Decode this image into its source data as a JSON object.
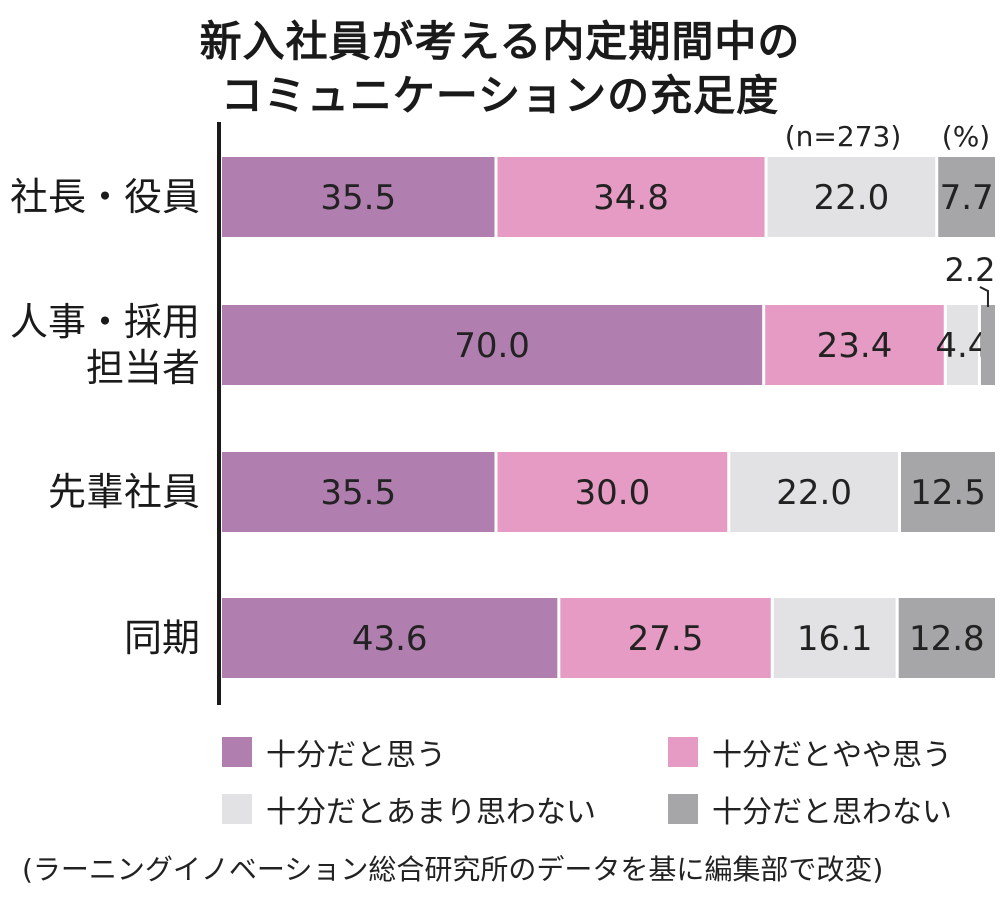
{
  "title_lines": [
    "新入社員が考える内定期間中の",
    "コミュニケーションの充足度"
  ],
  "sample_note": "(n=273)",
  "unit_note": "(%)",
  "source": "(ラーニングイノベーション総合研究所のデータを基に編集部で改変)",
  "colors": {
    "十分だと思う": "#b07fb0",
    "十分だとやや思う": "#e69bc4",
    "十分だとあまり思わない": "#e2e2e4",
    "十分だと思わない": "#a6a6a8"
  },
  "chart_data": {
    "type": "bar",
    "orientation": "horizontal",
    "stacked": true,
    "unit": "%",
    "sample_size": "n=273",
    "categories": [
      [
        "社長・役員"
      ],
      [
        "人事・採用",
        "担当者"
      ],
      [
        "先輩社員"
      ],
      [
        "同期"
      ]
    ],
    "series": [
      {
        "name": "十分だと思う",
        "values": [
          35.5,
          70.0,
          35.5,
          43.6
        ]
      },
      {
        "name": "十分だとやや思う",
        "values": [
          34.8,
          23.4,
          30.0,
          27.5
        ]
      },
      {
        "name": "十分だとあまり思わない",
        "values": [
          22.0,
          4.4,
          22.0,
          16.1
        ]
      },
      {
        "name": "十分だと思わない",
        "values": [
          7.7,
          2.2,
          12.5,
          12.8
        ]
      }
    ],
    "xlim": [
      0,
      100
    ],
    "grid": false,
    "legend_position": "bottom"
  }
}
